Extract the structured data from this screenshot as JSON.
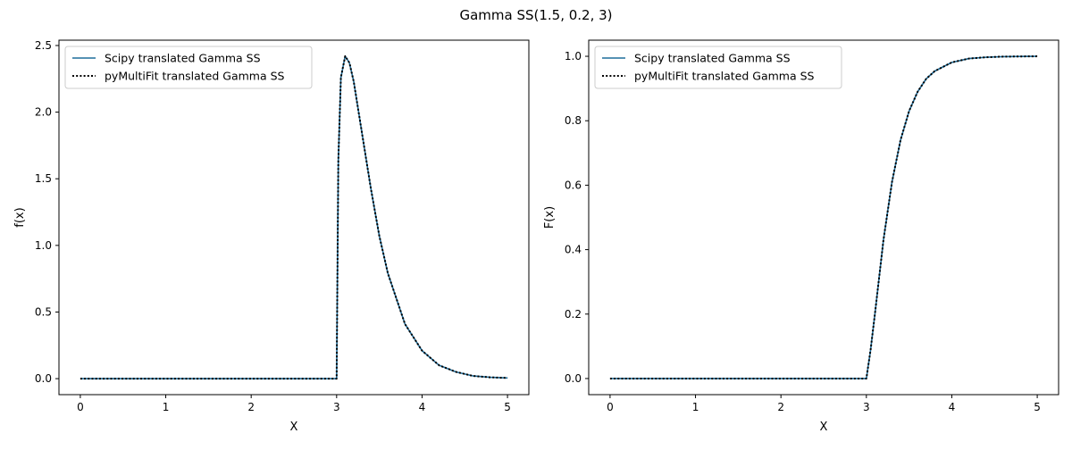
{
  "figure": {
    "title": "Gamma SS(1.5, 0.2, 3)"
  },
  "params": {
    "alpha": 1.5,
    "beta": 0.2,
    "loc": 3
  },
  "colors": {
    "scipy": "#1f6e9c",
    "pymultifit": "#000000"
  },
  "chart_data": [
    {
      "type": "line",
      "xlabel": "X",
      "ylabel": "f(x)",
      "xlim": [
        -0.25,
        5.25
      ],
      "ylim": [
        -0.12,
        2.54
      ],
      "xticks": [
        0,
        1,
        2,
        3,
        4,
        5
      ],
      "xtick_labels": [
        "0",
        "1",
        "2",
        "3",
        "4",
        "5"
      ],
      "yticks": [
        0,
        0.5,
        1,
        1.5,
        2,
        2.5
      ],
      "ytick_labels": [
        "0.0",
        "0.5",
        "1.0",
        "1.5",
        "2.0",
        "2.5"
      ],
      "legend_position": "upper-left",
      "x": [
        0,
        0.5,
        1,
        1.5,
        2,
        2.5,
        2.9,
        3,
        3.02,
        3.05,
        3.1,
        3.15,
        3.2,
        3.3,
        3.4,
        3.5,
        3.6,
        3.8,
        4,
        4.2,
        4.4,
        4.6,
        4.8,
        5
      ],
      "series": [
        {
          "name": "Scipy translated Gamma SS",
          "style": "solid",
          "values": [
            0,
            0,
            0,
            0,
            0,
            0,
            0,
            0,
            1.64,
            2.26,
            2.42,
            2.37,
            2.23,
            1.83,
            1.43,
            1.07,
            0.79,
            0.41,
            0.21,
            0.1,
            0.05,
            0.02,
            0.01,
            0.005
          ]
        },
        {
          "name": "pyMultiFit translated Gamma SS",
          "style": "dotted",
          "values": [
            0,
            0,
            0,
            0,
            0,
            0,
            0,
            0,
            1.64,
            2.26,
            2.42,
            2.37,
            2.23,
            1.83,
            1.43,
            1.07,
            0.79,
            0.41,
            0.21,
            0.1,
            0.05,
            0.02,
            0.01,
            0.005
          ]
        }
      ]
    },
    {
      "type": "line",
      "xlabel": "X",
      "ylabel": "F(x)",
      "xlim": [
        -0.25,
        5.25
      ],
      "ylim": [
        -0.05,
        1.05
      ],
      "xticks": [
        0,
        1,
        2,
        3,
        4,
        5
      ],
      "xtick_labels": [
        "0",
        "1",
        "2",
        "3",
        "4",
        "5"
      ],
      "yticks": [
        0,
        0.2,
        0.4,
        0.6,
        0.8,
        1.0
      ],
      "ytick_labels": [
        "0.0",
        "0.2",
        "0.4",
        "0.6",
        "0.8",
        "1.0"
      ],
      "legend_position": "upper-left",
      "x": [
        0,
        0.5,
        1,
        1.5,
        2,
        2.5,
        2.9,
        3,
        3.05,
        3.1,
        3.2,
        3.3,
        3.4,
        3.5,
        3.6,
        3.7,
        3.8,
        4,
        4.2,
        4.4,
        4.6,
        5
      ],
      "series": [
        {
          "name": "Scipy translated Gamma SS",
          "style": "solid",
          "values": [
            0,
            0,
            0,
            0,
            0,
            0,
            0,
            0,
            0.09,
            0.2,
            0.43,
            0.61,
            0.74,
            0.83,
            0.89,
            0.93,
            0.954,
            0.981,
            0.993,
            0.997,
            0.999,
            1.0
          ]
        },
        {
          "name": "pyMultiFit translated Gamma SS",
          "style": "dotted",
          "values": [
            0,
            0,
            0,
            0,
            0,
            0,
            0,
            0,
            0.09,
            0.2,
            0.43,
            0.61,
            0.74,
            0.83,
            0.89,
            0.93,
            0.954,
            0.981,
            0.993,
            0.997,
            0.999,
            1.0
          ]
        }
      ]
    }
  ]
}
